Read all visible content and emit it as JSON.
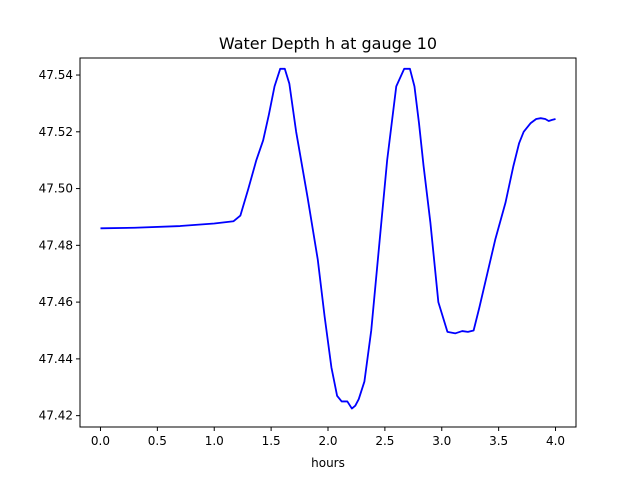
{
  "chart_data": {
    "type": "line",
    "title": "Water Depth h at gauge 10",
    "xlabel": "hours",
    "ylabel": "",
    "xlim": [
      -0.18,
      4.18
    ],
    "ylim": [
      47.416,
      47.546
    ],
    "xticks": [
      0.0,
      0.5,
      1.0,
      1.5,
      2.0,
      2.5,
      3.0,
      3.5,
      4.0
    ],
    "xtick_labels": [
      "0.0",
      "0.5",
      "1.0",
      "1.5",
      "2.0",
      "2.5",
      "3.0",
      "3.5",
      "4.0"
    ],
    "yticks": [
      47.42,
      47.44,
      47.46,
      47.48,
      47.5,
      47.52,
      47.54
    ],
    "ytick_labels": [
      "47.42",
      "47.44",
      "47.46",
      "47.48",
      "47.50",
      "47.52",
      "47.54"
    ],
    "grid": false,
    "series": [
      {
        "color": "#0000ff",
        "x": [
          0.0,
          0.3,
          0.7,
          1.0,
          1.17,
          1.23,
          1.3,
          1.37,
          1.43,
          1.48,
          1.53,
          1.58,
          1.62,
          1.66,
          1.72,
          1.82,
          1.91,
          1.97,
          2.03,
          2.08,
          2.12,
          2.17,
          2.21,
          2.24,
          2.27,
          2.32,
          2.38,
          2.45,
          2.52,
          2.6,
          2.67,
          2.72,
          2.76,
          2.8,
          2.84,
          2.9,
          2.97,
          3.05,
          3.12,
          3.18,
          3.23,
          3.28,
          3.33,
          3.4,
          3.47,
          3.56,
          3.63,
          3.68,
          3.72,
          3.78,
          3.83,
          3.87,
          3.91,
          3.94,
          3.97,
          4.0
        ],
        "y": [
          47.486,
          47.4862,
          47.4868,
          47.4877,
          47.4885,
          47.4905,
          47.5,
          47.51,
          47.517,
          47.526,
          47.536,
          47.5422,
          47.5422,
          47.537,
          47.52,
          47.497,
          47.475,
          47.455,
          47.437,
          47.427,
          47.425,
          47.425,
          47.4225,
          47.4235,
          47.4258,
          47.432,
          47.45,
          47.48,
          47.51,
          47.536,
          47.5422,
          47.5422,
          47.536,
          47.523,
          47.508,
          47.488,
          47.46,
          47.4495,
          47.449,
          47.4498,
          47.4495,
          47.45,
          47.458,
          47.47,
          47.482,
          47.495,
          47.508,
          47.516,
          47.52,
          47.523,
          47.5245,
          47.5248,
          47.5245,
          47.5238,
          47.5242,
          47.5245
        ]
      }
    ]
  }
}
